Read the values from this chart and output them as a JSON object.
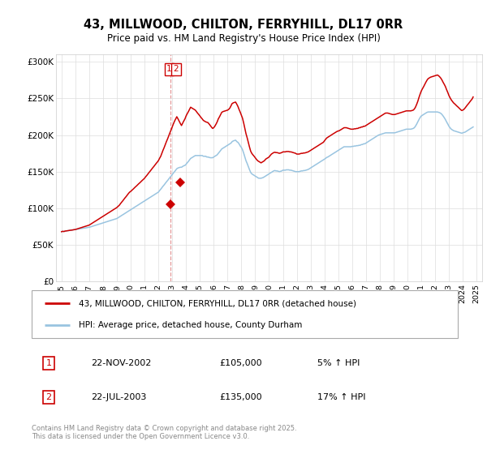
{
  "title": "43, MILLWOOD, CHILTON, FERRYHILL, DL17 0RR",
  "subtitle": "Price paid vs. HM Land Registry's House Price Index (HPI)",
  "background_color": "#ffffff",
  "grid_color": "#dddddd",
  "line1_color": "#cc0000",
  "line2_color": "#99c4e0",
  "legend1": "43, MILLWOOD, CHILTON, FERRYHILL, DL17 0RR (detached house)",
  "legend2": "HPI: Average price, detached house, County Durham",
  "transaction1_date": "22-NOV-2002",
  "transaction1_price": 105000,
  "transaction1_pct": "5% ↑ HPI",
  "transaction2_date": "22-JUL-2003",
  "transaction2_price": 135000,
  "transaction2_pct": "17% ↑ HPI",
  "copyright_text": "Contains HM Land Registry data © Crown copyright and database right 2025.\nThis data is licensed under the Open Government Licence v3.0.",
  "ylim_min": 0,
  "ylim_max": 310000,
  "yticks": [
    0,
    50000,
    100000,
    150000,
    200000,
    250000,
    300000
  ],
  "ytick_labels": [
    "£0",
    "£50K",
    "£100K",
    "£150K",
    "£200K",
    "£250K",
    "£300K"
  ],
  "transaction1_x": 2002.9,
  "transaction1_y": 105000,
  "transaction2_x": 2003.55,
  "transaction2_y": 135000,
  "xlim_min": 1994.6,
  "xlim_max": 2025.4,
  "xticks": [
    1995,
    1996,
    1997,
    1998,
    1999,
    2000,
    2001,
    2002,
    2003,
    2004,
    2005,
    2006,
    2007,
    2008,
    2009,
    2010,
    2011,
    2012,
    2013,
    2014,
    2015,
    2016,
    2017,
    2018,
    2019,
    2020,
    2021,
    2022,
    2023,
    2024,
    2025
  ],
  "hpi_dates": [
    1995.0,
    1995.08,
    1995.17,
    1995.25,
    1995.33,
    1995.42,
    1995.5,
    1995.58,
    1995.67,
    1995.75,
    1995.83,
    1995.92,
    1996.0,
    1996.08,
    1996.17,
    1996.25,
    1996.33,
    1996.42,
    1996.5,
    1996.58,
    1996.67,
    1996.75,
    1996.83,
    1996.92,
    1997.0,
    1997.08,
    1997.17,
    1997.25,
    1997.33,
    1997.42,
    1997.5,
    1997.58,
    1997.67,
    1997.75,
    1997.83,
    1997.92,
    1998.0,
    1998.08,
    1998.17,
    1998.25,
    1998.33,
    1998.42,
    1998.5,
    1998.58,
    1998.67,
    1998.75,
    1998.83,
    1998.92,
    1999.0,
    1999.08,
    1999.17,
    1999.25,
    1999.33,
    1999.42,
    1999.5,
    1999.58,
    1999.67,
    1999.75,
    1999.83,
    1999.92,
    2000.0,
    2000.08,
    2000.17,
    2000.25,
    2000.33,
    2000.42,
    2000.5,
    2000.58,
    2000.67,
    2000.75,
    2000.83,
    2000.92,
    2001.0,
    2001.08,
    2001.17,
    2001.25,
    2001.33,
    2001.42,
    2001.5,
    2001.58,
    2001.67,
    2001.75,
    2001.83,
    2001.92,
    2002.0,
    2002.08,
    2002.17,
    2002.25,
    2002.33,
    2002.42,
    2002.5,
    2002.58,
    2002.67,
    2002.75,
    2002.83,
    2002.92,
    2003.0,
    2003.08,
    2003.17,
    2003.25,
    2003.33,
    2003.42,
    2003.5,
    2003.58,
    2003.67,
    2003.75,
    2003.83,
    2003.92,
    2004.0,
    2004.08,
    2004.17,
    2004.25,
    2004.33,
    2004.42,
    2004.5,
    2004.58,
    2004.67,
    2004.75,
    2004.83,
    2004.92,
    2005.0,
    2005.08,
    2005.17,
    2005.25,
    2005.33,
    2005.42,
    2005.5,
    2005.58,
    2005.67,
    2005.75,
    2005.83,
    2005.92,
    2006.0,
    2006.08,
    2006.17,
    2006.25,
    2006.33,
    2006.42,
    2006.5,
    2006.58,
    2006.67,
    2006.75,
    2006.83,
    2006.92,
    2007.0,
    2007.08,
    2007.17,
    2007.25,
    2007.33,
    2007.42,
    2007.5,
    2007.58,
    2007.67,
    2007.75,
    2007.83,
    2007.92,
    2008.0,
    2008.08,
    2008.17,
    2008.25,
    2008.33,
    2008.42,
    2008.5,
    2008.58,
    2008.67,
    2008.75,
    2008.83,
    2008.92,
    2009.0,
    2009.08,
    2009.17,
    2009.25,
    2009.33,
    2009.42,
    2009.5,
    2009.58,
    2009.67,
    2009.75,
    2009.83,
    2009.92,
    2010.0,
    2010.08,
    2010.17,
    2010.25,
    2010.33,
    2010.42,
    2010.5,
    2010.58,
    2010.67,
    2010.75,
    2010.83,
    2010.92,
    2011.0,
    2011.08,
    2011.17,
    2011.25,
    2011.33,
    2011.42,
    2011.5,
    2011.58,
    2011.67,
    2011.75,
    2011.83,
    2011.92,
    2012.0,
    2012.08,
    2012.17,
    2012.25,
    2012.33,
    2012.42,
    2012.5,
    2012.58,
    2012.67,
    2012.75,
    2012.83,
    2012.92,
    2013.0,
    2013.08,
    2013.17,
    2013.25,
    2013.33,
    2013.42,
    2013.5,
    2013.58,
    2013.67,
    2013.75,
    2013.83,
    2013.92,
    2014.0,
    2014.08,
    2014.17,
    2014.25,
    2014.33,
    2014.42,
    2014.5,
    2014.58,
    2014.67,
    2014.75,
    2014.83,
    2014.92,
    2015.0,
    2015.08,
    2015.17,
    2015.25,
    2015.33,
    2015.42,
    2015.5,
    2015.58,
    2015.67,
    2015.75,
    2015.83,
    2015.92,
    2016.0,
    2016.08,
    2016.17,
    2016.25,
    2016.33,
    2016.42,
    2016.5,
    2016.58,
    2016.67,
    2016.75,
    2016.83,
    2016.92,
    2017.0,
    2017.08,
    2017.17,
    2017.25,
    2017.33,
    2017.42,
    2017.5,
    2017.58,
    2017.67,
    2017.75,
    2017.83,
    2017.92,
    2018.0,
    2018.08,
    2018.17,
    2018.25,
    2018.33,
    2018.42,
    2018.5,
    2018.58,
    2018.67,
    2018.75,
    2018.83,
    2018.92,
    2019.0,
    2019.08,
    2019.17,
    2019.25,
    2019.33,
    2019.42,
    2019.5,
    2019.58,
    2019.67,
    2019.75,
    2019.83,
    2019.92,
    2020.0,
    2020.08,
    2020.17,
    2020.25,
    2020.33,
    2020.42,
    2020.5,
    2020.58,
    2020.67,
    2020.75,
    2020.83,
    2020.92,
    2021.0,
    2021.08,
    2021.17,
    2021.25,
    2021.33,
    2021.42,
    2021.5,
    2021.58,
    2021.67,
    2021.75,
    2021.83,
    2021.92,
    2022.0,
    2022.08,
    2022.17,
    2022.25,
    2022.33,
    2022.42,
    2022.5,
    2022.58,
    2022.67,
    2022.75,
    2022.83,
    2022.92,
    2023.0,
    2023.08,
    2023.17,
    2023.25,
    2023.33,
    2023.42,
    2023.5,
    2023.58,
    2023.67,
    2023.75,
    2023.83,
    2023.92,
    2024.0,
    2024.08,
    2024.17,
    2024.25,
    2024.33,
    2024.42,
    2024.5,
    2024.58,
    2024.67,
    2024.75,
    2024.83,
    2024.92
  ],
  "hpi_vals": [
    68000,
    68500,
    68200,
    68800,
    69000,
    69200,
    69500,
    69800,
    70000,
    70200,
    70500,
    70800,
    71000,
    71200,
    71500,
    71800,
    72000,
    72200,
    72500,
    72800,
    73000,
    73200,
    73500,
    73800,
    74000,
    74500,
    75000,
    75500,
    76000,
    76500,
    77000,
    77500,
    78000,
    78500,
    79000,
    79500,
    80000,
    80500,
    81000,
    81500,
    82000,
    82500,
    83000,
    83500,
    84000,
    84500,
    85000,
    85500,
    86000,
    87000,
    88000,
    89000,
    90000,
    91000,
    92000,
    93000,
    94000,
    95000,
    96000,
    97000,
    98000,
    99000,
    100000,
    101000,
    102000,
    103000,
    104000,
    105000,
    106000,
    107000,
    108000,
    109000,
    110000,
    111000,
    112000,
    113000,
    114000,
    115000,
    116000,
    117000,
    118000,
    119000,
    120000,
    121000,
    122000,
    124000,
    126000,
    128000,
    130000,
    132000,
    134000,
    136000,
    138000,
    140000,
    142000,
    144000,
    146000,
    148000,
    150000,
    152000,
    154000,
    155000,
    155500,
    156000,
    156000,
    157000,
    158000,
    158500,
    160000,
    162000,
    164000,
    166000,
    168000,
    169000,
    170000,
    171000,
    172000,
    172000,
    172000,
    172000,
    172000,
    172000,
    172000,
    171000,
    171000,
    171000,
    170000,
    170000,
    169500,
    169000,
    169000,
    169000,
    170000,
    171000,
    172000,
    173000,
    175000,
    177000,
    179000,
    181000,
    182000,
    183000,
    184000,
    185000,
    186000,
    187000,
    188000,
    189000,
    191000,
    192000,
    192500,
    193000,
    191000,
    190000,
    188000,
    185000,
    183000,
    180000,
    175000,
    170000,
    165000,
    161000,
    157000,
    153000,
    149000,
    147000,
    146000,
    145000,
    144000,
    143000,
    142000,
    141000,
    141000,
    141000,
    141500,
    142000,
    143000,
    144000,
    145000,
    146000,
    147000,
    148000,
    149000,
    150000,
    151000,
    151500,
    151000,
    151000,
    150500,
    150000,
    150500,
    151000,
    152000,
    152000,
    152000,
    152500,
    152500,
    152500,
    152000,
    152000,
    151500,
    151000,
    150500,
    150000,
    150000,
    150000,
    150000,
    150500,
    151000,
    151000,
    151500,
    151500,
    152000,
    152500,
    153000,
    154000,
    155000,
    156000,
    157000,
    158000,
    159000,
    160000,
    161000,
    162000,
    163000,
    164000,
    165000,
    166000,
    167000,
    168000,
    169500,
    170000,
    171000,
    172000,
    173000,
    174000,
    175000,
    176000,
    177000,
    178000,
    179000,
    180000,
    181000,
    182000,
    183000,
    184000,
    184000,
    184000,
    184000,
    184000,
    184000,
    184000,
    184500,
    184500,
    185000,
    185000,
    185500,
    185500,
    186000,
    186000,
    187000,
    187000,
    188000,
    188000,
    189000,
    190000,
    191000,
    192000,
    193000,
    194000,
    195000,
    196000,
    197000,
    198000,
    199000,
    200000,
    200500,
    201000,
    201500,
    202000,
    202500,
    203000,
    203000,
    203000,
    203000,
    203000,
    203000,
    203000,
    203000,
    203000,
    203500,
    204000,
    204500,
    205000,
    205500,
    206000,
    206500,
    207000,
    207500,
    208000,
    208000,
    208000,
    208000,
    208000,
    208500,
    209000,
    210000,
    212000,
    215000,
    218000,
    221000,
    224000,
    226000,
    227000,
    228000,
    229000,
    230000,
    231000,
    231500,
    231500,
    231500,
    231500,
    231500,
    231500,
    231500,
    231500,
    231500,
    231000,
    230500,
    229500,
    228000,
    226000,
    223500,
    221000,
    218000,
    215000,
    212000,
    210000,
    208000,
    207000,
    206000,
    205500,
    205000,
    204500,
    204000,
    203500,
    203000,
    202500,
    203000,
    203500,
    204000,
    205000,
    206000,
    207000,
    208000,
    209000,
    210000,
    211000
  ],
  "prop_vals": [
    68000,
    68500,
    68200,
    68800,
    69000,
    69200,
    69500,
    69800,
    70000,
    70200,
    70500,
    70800,
    71000,
    71500,
    72000,
    72500,
    73000,
    73500,
    74000,
    74500,
    75000,
    75500,
    76000,
    76500,
    77000,
    78000,
    79000,
    80000,
    81000,
    82000,
    83000,
    84000,
    85000,
    86000,
    87000,
    88000,
    89000,
    90000,
    91000,
    92000,
    93000,
    94000,
    95000,
    96000,
    97000,
    98000,
    99000,
    100000,
    101000,
    102500,
    104000,
    106000,
    108000,
    110000,
    112000,
    114000,
    116000,
    118000,
    120000,
    122000,
    123000,
    124500,
    126000,
    127500,
    129000,
    130500,
    132000,
    133500,
    135000,
    136500,
    138000,
    139500,
    141000,
    143000,
    145000,
    147000,
    149000,
    151000,
    153000,
    155000,
    157000,
    159000,
    161000,
    163000,
    165000,
    168000,
    171000,
    175000,
    179000,
    183000,
    187000,
    191000,
    195000,
    199000,
    203000,
    207000,
    211000,
    215000,
    219000,
    222000,
    225000,
    222000,
    219000,
    216000,
    213000,
    216000,
    219000,
    222000,
    226000,
    229000,
    232000,
    235000,
    238000,
    237000,
    236000,
    235000,
    234000,
    232000,
    230000,
    228000,
    226000,
    224000,
    222000,
    220000,
    219000,
    218000,
    217500,
    217000,
    215000,
    213000,
    211000,
    209000,
    210000,
    212000,
    215000,
    218000,
    222000,
    225000,
    228000,
    231000,
    232000,
    232500,
    233000,
    233500,
    234000,
    235000,
    237000,
    240000,
    243000,
    244000,
    244500,
    245000,
    242000,
    239000,
    235000,
    231000,
    227000,
    223000,
    216000,
    209000,
    202000,
    196000,
    190000,
    184000,
    178000,
    175000,
    173000,
    171000,
    169000,
    167000,
    165000,
    164000,
    163000,
    162000,
    163000,
    164000,
    165000,
    167000,
    168000,
    169000,
    170000,
    172000,
    174000,
    175000,
    176000,
    176500,
    176000,
    176000,
    175500,
    175000,
    175500,
    176000,
    177000,
    177000,
    177000,
    177500,
    177500,
    177500,
    177000,
    177000,
    176500,
    176000,
    175500,
    175000,
    174000,
    174000,
    174000,
    174500,
    175000,
    175000,
    175500,
    175500,
    176000,
    176500,
    177000,
    178000,
    179000,
    180000,
    181000,
    182000,
    183000,
    184000,
    185000,
    186000,
    187000,
    188000,
    189000,
    190000,
    192000,
    194000,
    196000,
    197000,
    198000,
    199000,
    200000,
    201000,
    202000,
    203000,
    204000,
    205000,
    205500,
    206000,
    207000,
    208000,
    209000,
    210000,
    210000,
    210000,
    209500,
    209000,
    208500,
    208000,
    208000,
    208000,
    208500,
    208500,
    209000,
    209000,
    210000,
    210000,
    211000,
    211000,
    212000,
    212000,
    213000,
    214000,
    215000,
    216000,
    217000,
    218000,
    219000,
    220000,
    221000,
    222000,
    223000,
    224000,
    225000,
    226000,
    227000,
    228000,
    229000,
    230000,
    230000,
    230000,
    229500,
    229000,
    228500,
    228000,
    228000,
    228000,
    228500,
    229000,
    229500,
    230000,
    230500,
    231000,
    231500,
    232000,
    232500,
    233000,
    233000,
    233000,
    233000,
    233000,
    233500,
    234000,
    235500,
    238000,
    242000,
    246000,
    251000,
    256000,
    260000,
    263000,
    266000,
    269000,
    272000,
    275000,
    277000,
    278000,
    279000,
    279500,
    280000,
    280500,
    281000,
    281500,
    282000,
    281000,
    279500,
    277500,
    275000,
    272000,
    269000,
    266000,
    262000,
    258000,
    254000,
    251000,
    248000,
    246000,
    244000,
    242500,
    241000,
    239500,
    238000,
    236500,
    235000,
    233500,
    234000,
    235000,
    237000,
    239000,
    241000,
    243000,
    245000,
    247000,
    249000,
    252000,
    255000,
    260000
  ]
}
